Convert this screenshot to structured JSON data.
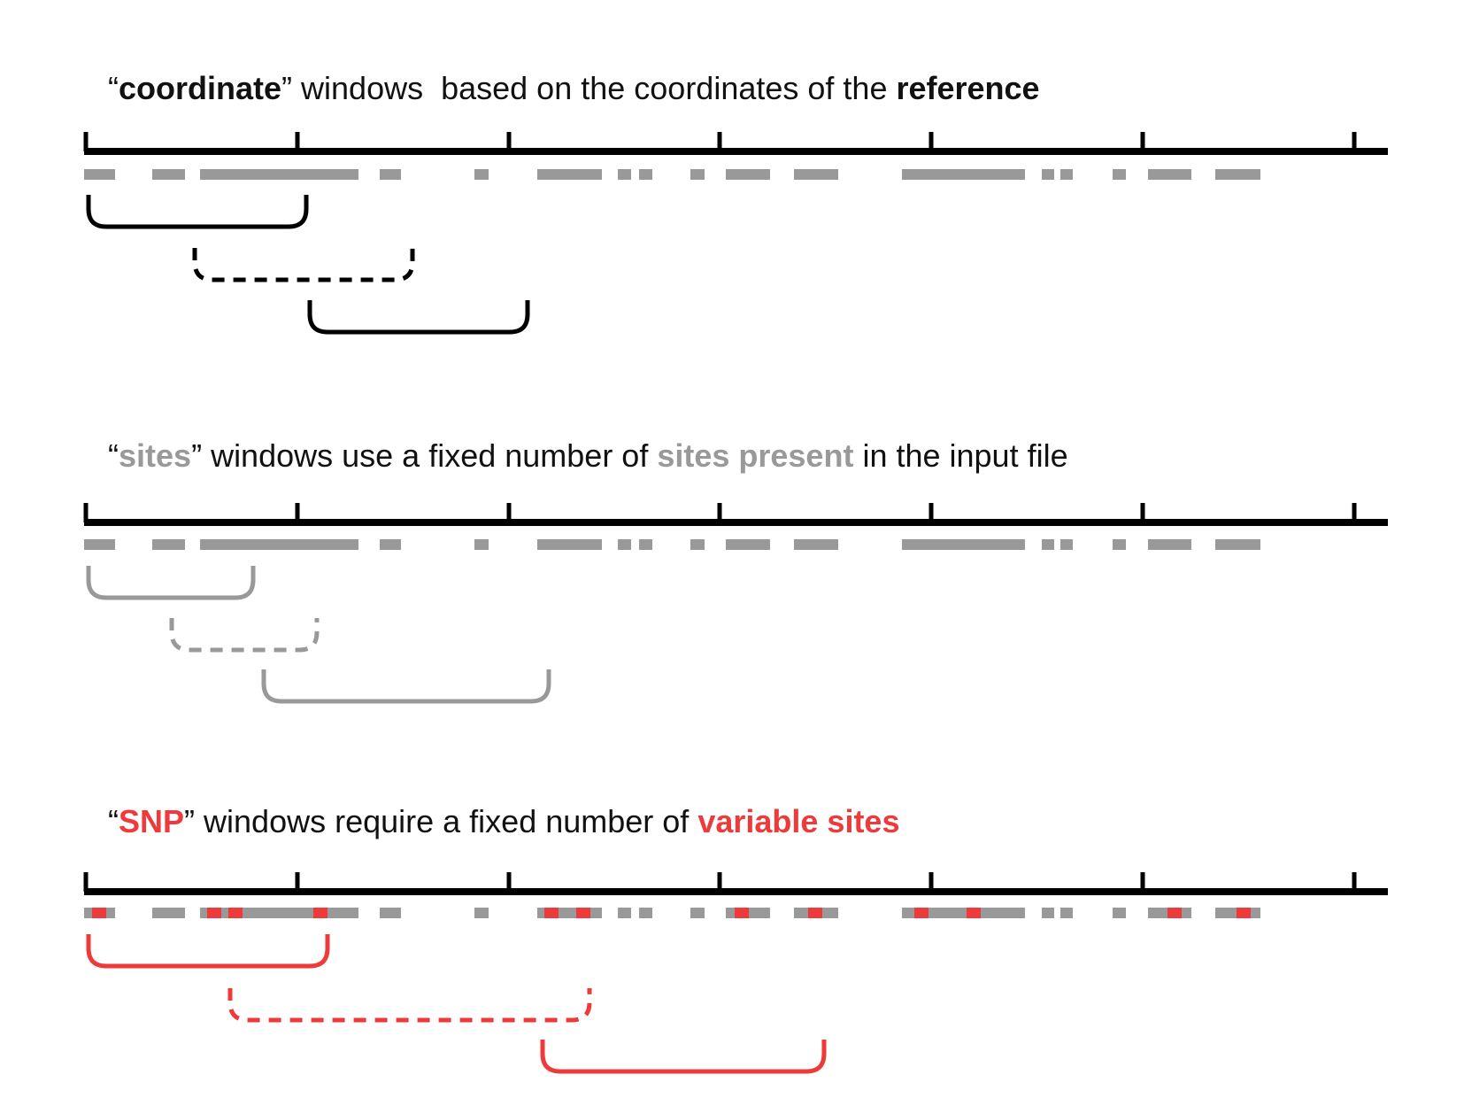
{
  "colors": {
    "axis": "#000000",
    "site_block": "#999999",
    "snp": "#ee3a3a",
    "coordinate_windows": "#000000",
    "sites_windows": "#999999",
    "snp_windows": "#ee3a3a"
  },
  "panels": [
    {
      "id": "coordinate",
      "title": {
        "quote_open": "“",
        "keyword": "coordinate",
        "quote_close": "”",
        "text_before": " windows  based on the coordinates of the ",
        "emphasis": "reference",
        "text_after": ""
      }
    },
    {
      "id": "sites",
      "title": {
        "quote_open": "“",
        "keyword": "sites",
        "quote_close": "”",
        "text_before": " windows use a fixed number of ",
        "emphasis": "sites present",
        "text_after": " in the input file"
      }
    },
    {
      "id": "snp",
      "title": {
        "quote_open": "“",
        "keyword": "SNP",
        "quote_close": "”",
        "text_before": " windows require a fixed number of ",
        "emphasis": "variable sites",
        "text_after": ""
      }
    }
  ]
}
